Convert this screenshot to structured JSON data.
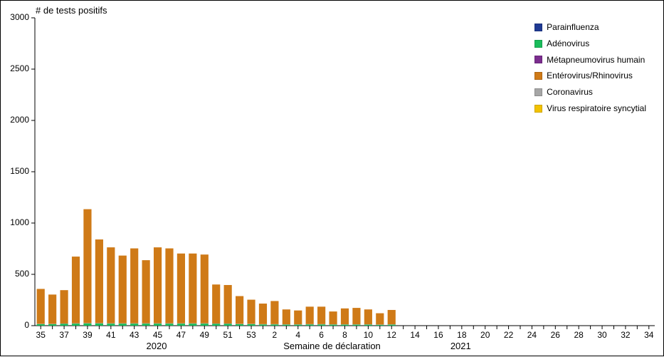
{
  "chart": {
    "type": "stacked-bar",
    "y_title": "# de tests positifs",
    "x_title": "Semaine de déclaration",
    "ylim": [
      0,
      3000
    ],
    "ytick_step": 500,
    "yticks": [
      0,
      500,
      1000,
      1500,
      2000,
      2500,
      3000
    ],
    "background_color": "#ffffff",
    "axis_color": "#000000",
    "tick_font_size": 12,
    "title_font_size": 13,
    "bar_width_ratio": 0.68,
    "years": [
      {
        "label": "2020",
        "center_category_index": 10
      },
      {
        "label": "2021",
        "center_category_index": 36
      }
    ],
    "categories": [
      "35",
      "36",
      "37",
      "38",
      "39",
      "40",
      "41",
      "42",
      "43",
      "44",
      "45",
      "46",
      "47",
      "48",
      "49",
      "50",
      "51",
      "52",
      "53",
      "1",
      "2",
      "3",
      "4",
      "5",
      "6",
      "7",
      "8",
      "9",
      "10",
      "11",
      "12",
      "13",
      "14",
      "15",
      "16",
      "17",
      "18",
      "19",
      "20",
      "21",
      "22",
      "23",
      "24",
      "25",
      "26",
      "27",
      "28",
      "29",
      "30",
      "31",
      "32",
      "33",
      "34"
    ],
    "display_tick_every": 2,
    "display_tick_offset": 0,
    "last_data_index": 30,
    "series": [
      {
        "key": "parainfluenza",
        "label": "Parainfluenza",
        "color": "#1f3a93"
      },
      {
        "key": "adenovirus",
        "label": "Adénovirus",
        "color": "#1abc5b"
      },
      {
        "key": "hmpv",
        "label": "Métapneumovirus humain",
        "color": "#7b2d8e"
      },
      {
        "key": "entero_rhino",
        "label": "Entérovirus/Rhinovirus",
        "color": "#cf7a17"
      },
      {
        "key": "coronavirus",
        "label": "Coronavirus",
        "color": "#a6a6a6"
      },
      {
        "key": "rsv",
        "label": "Virus respiratoire syncytial",
        "color": "#f2c200"
      }
    ],
    "stack_order": [
      "adenovirus",
      "parainfluenza",
      "hmpv",
      "rsv",
      "coronavirus",
      "entero_rhino"
    ],
    "data": {
      "35": {
        "adenovirus": 15,
        "parainfluenza": 0,
        "hmpv": 0,
        "rsv": 0,
        "coronavirus": 3,
        "entero_rhino": 340
      },
      "36": {
        "adenovirus": 15,
        "parainfluenza": 0,
        "hmpv": 0,
        "rsv": 0,
        "coronavirus": 3,
        "entero_rhino": 285
      },
      "37": {
        "adenovirus": 18,
        "parainfluenza": 0,
        "hmpv": 0,
        "rsv": 0,
        "coronavirus": 3,
        "entero_rhino": 325
      },
      "38": {
        "adenovirus": 20,
        "parainfluenza": 0,
        "hmpv": 0,
        "rsv": 0,
        "coronavirus": 3,
        "entero_rhino": 650
      },
      "39": {
        "adenovirus": 22,
        "parainfluenza": 0,
        "hmpv": 0,
        "rsv": 0,
        "coronavirus": 3,
        "entero_rhino": 1110
      },
      "40": {
        "adenovirus": 22,
        "parainfluenza": 0,
        "hmpv": 0,
        "rsv": 0,
        "coronavirus": 3,
        "entero_rhino": 815
      },
      "41": {
        "adenovirus": 20,
        "parainfluenza": 0,
        "hmpv": 0,
        "rsv": 0,
        "coronavirus": 3,
        "entero_rhino": 740
      },
      "42": {
        "adenovirus": 20,
        "parainfluenza": 0,
        "hmpv": 0,
        "rsv": 0,
        "coronavirus": 3,
        "entero_rhino": 660
      },
      "43": {
        "adenovirus": 20,
        "parainfluenza": 0,
        "hmpv": 0,
        "rsv": 0,
        "coronavirus": 3,
        "entero_rhino": 730
      },
      "44": {
        "adenovirus": 20,
        "parainfluenza": 0,
        "hmpv": 0,
        "rsv": 0,
        "coronavirus": 3,
        "entero_rhino": 615
      },
      "45": {
        "adenovirus": 20,
        "parainfluenza": 0,
        "hmpv": 0,
        "rsv": 0,
        "coronavirus": 3,
        "entero_rhino": 740
      },
      "46": {
        "adenovirus": 20,
        "parainfluenza": 0,
        "hmpv": 0,
        "rsv": 0,
        "coronavirus": 3,
        "entero_rhino": 730
      },
      "47": {
        "adenovirus": 20,
        "parainfluenza": 0,
        "hmpv": 0,
        "rsv": 0,
        "coronavirus": 3,
        "entero_rhino": 680
      },
      "48": {
        "adenovirus": 20,
        "parainfluenza": 0,
        "hmpv": 0,
        "rsv": 0,
        "coronavirus": 3,
        "entero_rhino": 680
      },
      "49": {
        "adenovirus": 20,
        "parainfluenza": 0,
        "hmpv": 0,
        "rsv": 0,
        "coronavirus": 3,
        "entero_rhino": 670
      },
      "50": {
        "adenovirus": 18,
        "parainfluenza": 0,
        "hmpv": 0,
        "rsv": 0,
        "coronavirus": 3,
        "entero_rhino": 380
      },
      "51": {
        "adenovirus": 18,
        "parainfluenza": 0,
        "hmpv": 0,
        "rsv": 0,
        "coronavirus": 3,
        "entero_rhino": 375
      },
      "52": {
        "adenovirus": 15,
        "parainfluenza": 0,
        "hmpv": 0,
        "rsv": 0,
        "coronavirus": 3,
        "entero_rhino": 270
      },
      "53": {
        "adenovirus": 15,
        "parainfluenza": 0,
        "hmpv": 0,
        "rsv": 0,
        "coronavirus": 3,
        "entero_rhino": 235
      },
      "1": {
        "adenovirus": 12,
        "parainfluenza": 0,
        "hmpv": 0,
        "rsv": 0,
        "coronavirus": 3,
        "entero_rhino": 200
      },
      "2": {
        "adenovirus": 12,
        "parainfluenza": 0,
        "hmpv": 0,
        "rsv": 0,
        "coronavirus": 3,
        "entero_rhino": 225
      },
      "3": {
        "adenovirus": 10,
        "parainfluenza": 0,
        "hmpv": 0,
        "rsv": 0,
        "coronavirus": 3,
        "entero_rhino": 145
      },
      "4": {
        "adenovirus": 10,
        "parainfluenza": 0,
        "hmpv": 0,
        "rsv": 0,
        "coronavirus": 3,
        "entero_rhino": 135
      },
      "5": {
        "adenovirus": 12,
        "parainfluenza": 0,
        "hmpv": 0,
        "rsv": 0,
        "coronavirus": 3,
        "entero_rhino": 170
      },
      "6": {
        "adenovirus": 12,
        "parainfluenza": 0,
        "hmpv": 0,
        "rsv": 0,
        "coronavirus": 3,
        "entero_rhino": 170
      },
      "7": {
        "adenovirus": 10,
        "parainfluenza": 0,
        "hmpv": 0,
        "rsv": 0,
        "coronavirus": 3,
        "entero_rhino": 125
      },
      "8": {
        "adenovirus": 10,
        "parainfluenza": 0,
        "hmpv": 0,
        "rsv": 0,
        "coronavirus": 3,
        "entero_rhino": 155
      },
      "9": {
        "adenovirus": 10,
        "parainfluenza": 0,
        "hmpv": 0,
        "rsv": 0,
        "coronavirus": 3,
        "entero_rhino": 160
      },
      "10": {
        "adenovirus": 10,
        "parainfluenza": 0,
        "hmpv": 0,
        "rsv": 0,
        "coronavirus": 3,
        "entero_rhino": 145
      },
      "11": {
        "adenovirus": 8,
        "parainfluenza": 0,
        "hmpv": 0,
        "rsv": 0,
        "coronavirus": 3,
        "entero_rhino": 110
      },
      "12": {
        "adenovirus": 10,
        "parainfluenza": 0,
        "hmpv": 0,
        "rsv": 0,
        "coronavirus": 3,
        "entero_rhino": 140
      }
    }
  }
}
